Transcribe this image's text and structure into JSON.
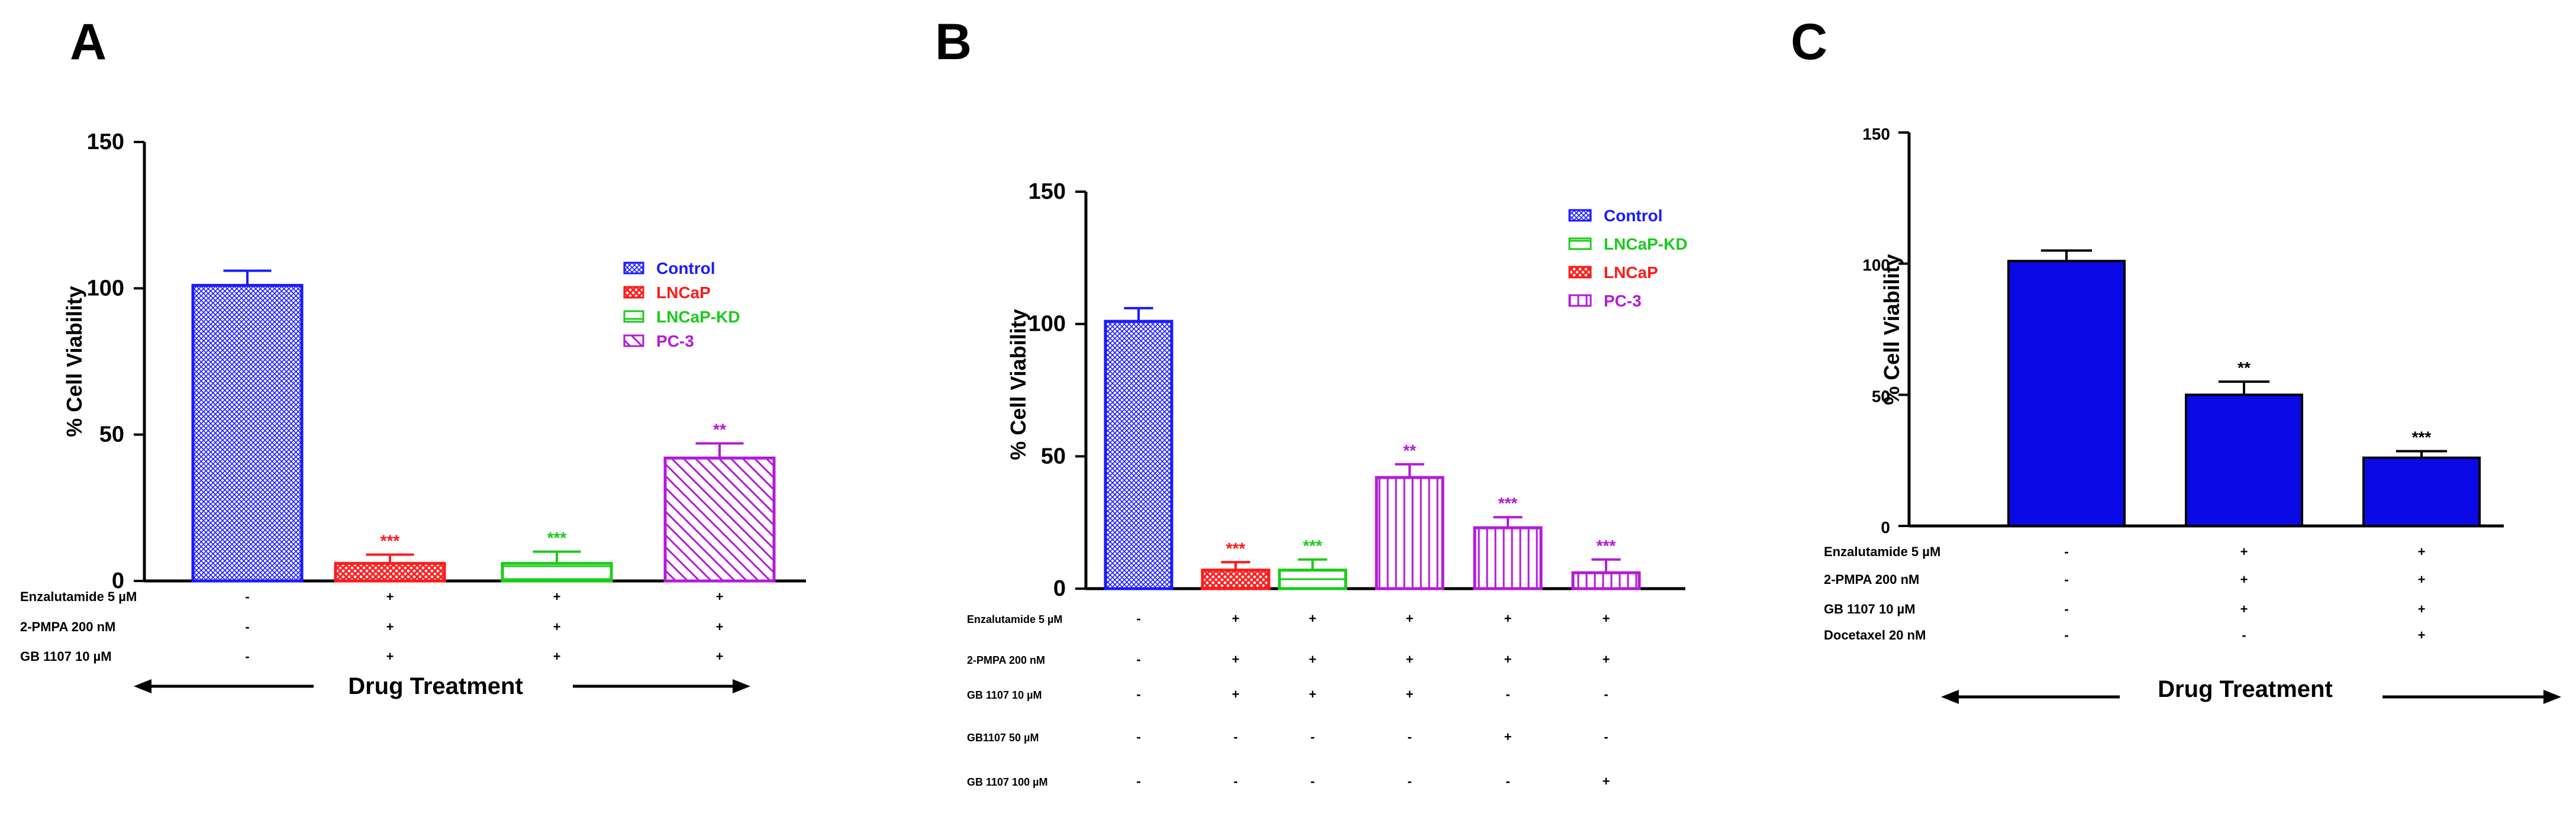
{
  "chart_data": [
    {
      "panel": "A",
      "type": "bar",
      "title": "",
      "xlabel": "Drug Treatment",
      "ylabel": "% Cell Viability",
      "ylim": [
        0,
        150
      ],
      "yticks": [
        0,
        50,
        100,
        150
      ],
      "legend_position": "top-right",
      "legend": [
        {
          "name": "Control",
          "color": "#1a1aff",
          "pattern": "crosshatch"
        },
        {
          "name": "LNCaP",
          "color": "#ff1a1a",
          "pattern": "checker"
        },
        {
          "name": "LNCaP-KD",
          "color": "#1acc1a",
          "pattern": "horizontal"
        },
        {
          "name": "PC-3",
          "color": "#b31ad9",
          "pattern": "diagonal"
        }
      ],
      "bars": [
        {
          "series": "Control",
          "value": 101,
          "error": 5,
          "sig": ""
        },
        {
          "series": "LNCaP",
          "value": 6,
          "error": 3,
          "sig": "***"
        },
        {
          "series": "LNCaP-KD",
          "value": 6,
          "error": 4,
          "sig": "***"
        },
        {
          "series": "PC-3",
          "value": 42,
          "error": 5,
          "sig": "**"
        }
      ],
      "treatments": [
        {
          "label": "Enzalutamide 5 µM",
          "symbols": [
            "-",
            "+",
            "+",
            "+"
          ]
        },
        {
          "label": "2-PMPA 200 nM",
          "symbols": [
            "-",
            "+",
            "+",
            "+"
          ]
        },
        {
          "label": "GB 1107 10 µM",
          "symbols": [
            "-",
            "+",
            "+",
            "+"
          ]
        }
      ]
    },
    {
      "panel": "B",
      "type": "bar",
      "title": "",
      "xlabel": "",
      "ylabel": "% Cell Viability",
      "ylim": [
        0,
        150
      ],
      "yticks": [
        0,
        50,
        100,
        150
      ],
      "legend_position": "top-right",
      "legend": [
        {
          "name": "Control",
          "color": "#1a1aff",
          "pattern": "crosshatch"
        },
        {
          "name": "LNCaP-KD",
          "color": "#1acc1a",
          "pattern": "horizontal"
        },
        {
          "name": "LNCaP",
          "color": "#ff1a1a",
          "pattern": "checker"
        },
        {
          "name": "PC-3",
          "color": "#b31ad9",
          "pattern": "vertical"
        }
      ],
      "bars": [
        {
          "series": "Control",
          "value": 101,
          "error": 5,
          "sig": ""
        },
        {
          "series": "LNCaP",
          "value": 7,
          "error": 3,
          "sig": "***"
        },
        {
          "series": "LNCaP-KD",
          "value": 7,
          "error": 4,
          "sig": "***"
        },
        {
          "series": "PC-3",
          "value": 42,
          "error": 5,
          "sig": "**"
        },
        {
          "series": "PC-3",
          "value": 23,
          "error": 4,
          "sig": "***"
        },
        {
          "series": "PC-3",
          "value": 6,
          "error": 5,
          "sig": "***"
        }
      ],
      "treatments": [
        {
          "label": "Enzalutamide 5 µM",
          "symbols": [
            "-",
            "+",
            "+",
            "+",
            "+",
            "+"
          ]
        },
        {
          "label": "2-PMPA 200 nM",
          "symbols": [
            "-",
            "+",
            "+",
            "+",
            "+",
            "+"
          ]
        },
        {
          "label": "GB 1107 10 µM",
          "symbols": [
            "-",
            "+",
            "+",
            "+",
            "-",
            "-"
          ]
        },
        {
          "label": "GB1107 50 µM",
          "symbols": [
            "-",
            "-",
            "-",
            "-",
            "+",
            "-"
          ]
        },
        {
          "label": "GB 1107 100 µM",
          "symbols": [
            "-",
            "-",
            "-",
            "-",
            "-",
            "+"
          ]
        }
      ]
    },
    {
      "panel": "C",
      "type": "bar",
      "title": "",
      "xlabel": "Drug Treatment",
      "ylabel": "% Cell Viability",
      "ylim": [
        0,
        150
      ],
      "yticks": [
        0,
        50,
        100,
        150
      ],
      "legend_position": "none",
      "legend": [],
      "bars": [
        {
          "series": "",
          "value": 101,
          "error": 4,
          "sig": ""
        },
        {
          "series": "",
          "value": 50,
          "error": 5,
          "sig": "**"
        },
        {
          "series": "",
          "value": 26,
          "error": 2.5,
          "sig": "***"
        }
      ],
      "treatments": [
        {
          "label": "Enzalutamide 5 µM",
          "symbols": [
            "-",
            "+",
            "+"
          ]
        },
        {
          "label": "2-PMPA 200 nM",
          "symbols": [
            "-",
            "+",
            "+"
          ]
        },
        {
          "label": "GB 1107 10 µM",
          "symbols": [
            "-",
            "+",
            "+"
          ]
        },
        {
          "label": "Docetaxel 20 nM",
          "symbols": [
            "-",
            "-",
            "+"
          ]
        }
      ]
    }
  ],
  "colors": {
    "control": "#1a1aff",
    "lncap": "#ff1a1a",
    "lncap_kd": "#1acc1a",
    "pc3": "#b31ad9",
    "solid_blue": "#0a0ae6"
  }
}
